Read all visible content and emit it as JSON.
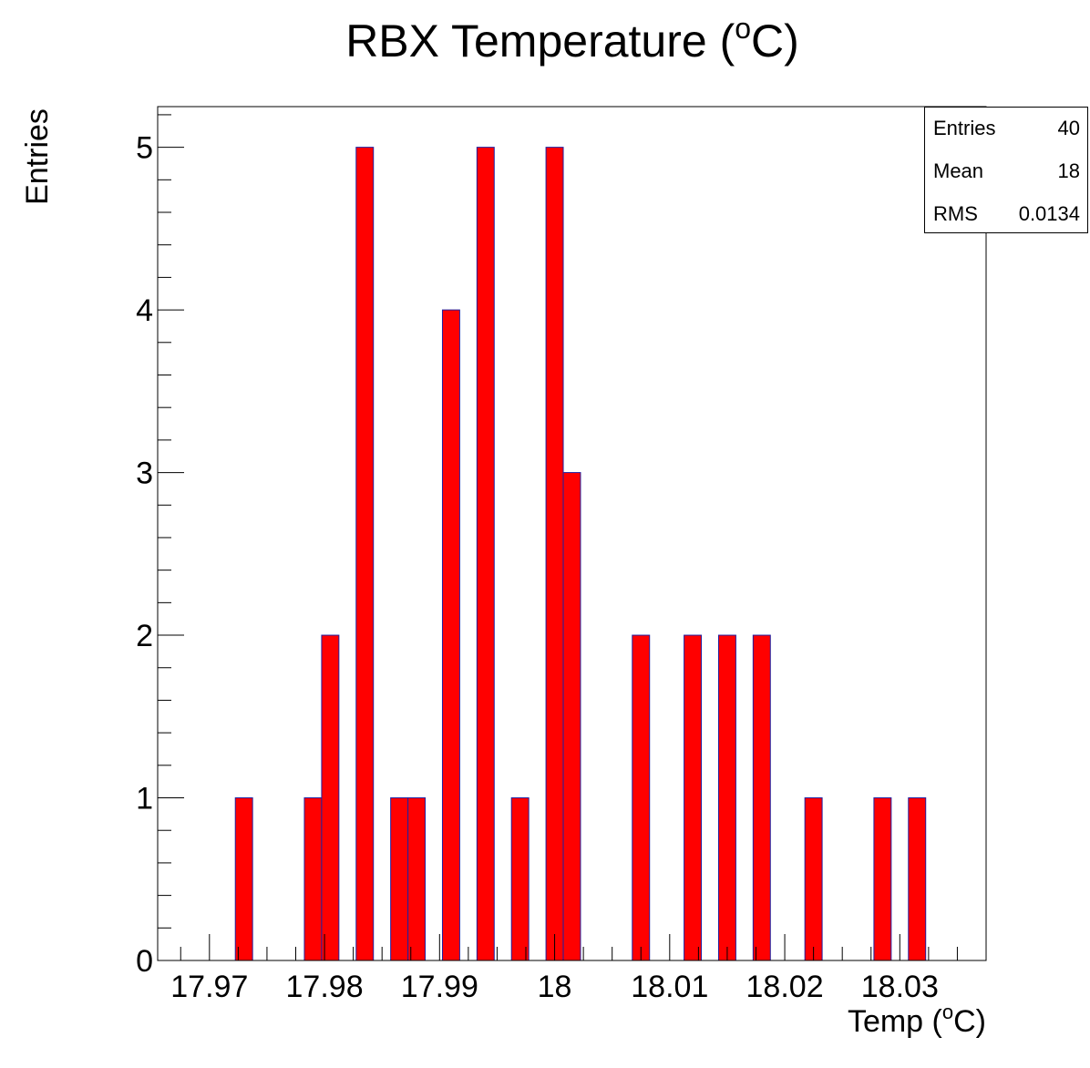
{
  "chart_data": {
    "type": "bar",
    "title": "RBX Temperature (",
    "title_sup": "o",
    "title_tail": "C)",
    "xlabel": "Temp (",
    "xlabel_sup": "o",
    "xlabel_tail": "C)",
    "ylabel": "Entries",
    "bin_width": 0.0015,
    "x_range": [
      17.9655,
      18.0375
    ],
    "ylim": [
      0,
      5.25
    ],
    "x_ticks": [
      17.97,
      17.98,
      17.99,
      18,
      18.01,
      18.02,
      18.03
    ],
    "x_tick_labels": [
      "17.97",
      "17.98",
      "17.99",
      "18",
      "18.01",
      "18.02",
      "18.03"
    ],
    "y_ticks": [
      0,
      1,
      2,
      3,
      4,
      5
    ],
    "y_tick_labels": [
      "0",
      "1",
      "2",
      "3",
      "4",
      "5"
    ],
    "bins": [
      {
        "x": 17.973,
        "count": 1
      },
      {
        "x": 17.979,
        "count": 1
      },
      {
        "x": 17.9805,
        "count": 2
      },
      {
        "x": 17.9835,
        "count": 5
      },
      {
        "x": 17.9865,
        "count": 1
      },
      {
        "x": 17.988,
        "count": 1
      },
      {
        "x": 17.991,
        "count": 4
      },
      {
        "x": 17.994,
        "count": 5
      },
      {
        "x": 17.997,
        "count": 1
      },
      {
        "x": 18.0,
        "count": 5
      },
      {
        "x": 18.0015,
        "count": 3
      },
      {
        "x": 18.0075,
        "count": 2
      },
      {
        "x": 18.012,
        "count": 2
      },
      {
        "x": 18.015,
        "count": 2
      },
      {
        "x": 18.018,
        "count": 2
      },
      {
        "x": 18.0225,
        "count": 1
      },
      {
        "x": 18.0285,
        "count": 1
      },
      {
        "x": 18.0315,
        "count": 1
      }
    ],
    "fill_color": "#ff0000",
    "line_color": "#2020a0",
    "grid": false,
    "legend": "top-right"
  },
  "stats": {
    "entries_label": "Entries",
    "entries_value": "40",
    "mean_label": "Mean",
    "mean_value": "18",
    "rms_label": "RMS",
    "rms_value": "0.0134"
  }
}
